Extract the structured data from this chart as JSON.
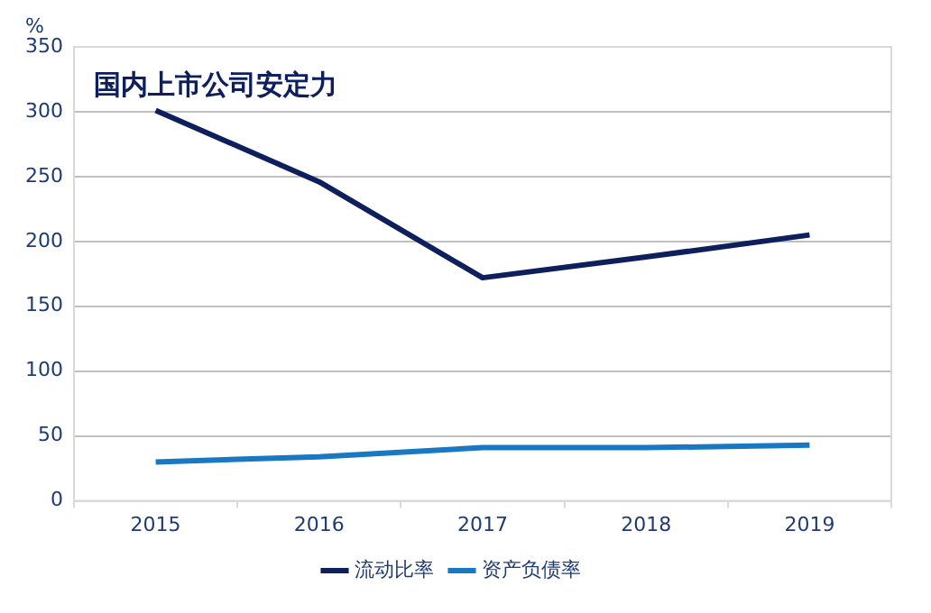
{
  "chart_data": {
    "type": "line",
    "title": "国内上市公司安定力",
    "ylabel": "%",
    "categories": [
      "2015",
      "2016",
      "2017",
      "2018",
      "2019"
    ],
    "series": [
      {
        "name": "流动比率",
        "color": "#0d1f5c",
        "values": [
          301,
          246,
          172,
          188,
          205
        ]
      },
      {
        "name": "资产负债率",
        "color": "#1a78c2",
        "values": [
          30,
          34,
          41,
          41,
          43
        ]
      }
    ],
    "ylim": [
      0,
      350
    ],
    "yticks": [
      0,
      50,
      100,
      150,
      200,
      250,
      300,
      350
    ],
    "grid": "y",
    "legend": "bottom",
    "marker": "none",
    "line_style": "solid"
  }
}
